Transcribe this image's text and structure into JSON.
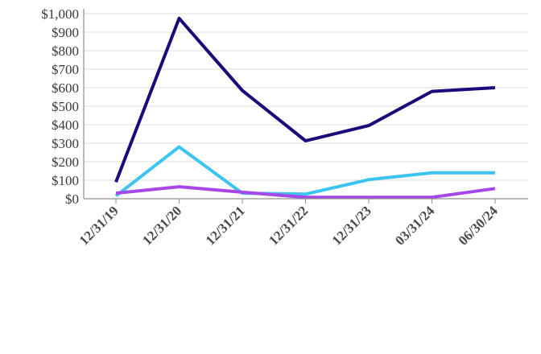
{
  "chart_data": {
    "type": "line",
    "title": "",
    "xlabel": "",
    "ylabel": "",
    "categories": [
      "12/31/19",
      "12/31/20",
      "12/31/21",
      "12/31/22",
      "12/31/23",
      "03/31/24",
      "06/30/24"
    ],
    "y_tick_labels": [
      "$0",
      "$100",
      "$200",
      "$300",
      "$400",
      "$500",
      "$600",
      "$700",
      "$800",
      "$900",
      "$1,000"
    ],
    "ylim": [
      0,
      1000
    ],
    "grid": true,
    "legend": "none",
    "series": [
      {
        "color": "#1a0a7a",
        "values": [
          90,
          975,
          585,
          313,
          395,
          580,
          600
        ]
      },
      {
        "color": "#3cc4f0",
        "values": [
          15,
          280,
          30,
          25,
          103,
          140,
          140
        ]
      },
      {
        "color": "#a847e8",
        "values": [
          30,
          65,
          35,
          8,
          8,
          8,
          55
        ]
      }
    ]
  }
}
